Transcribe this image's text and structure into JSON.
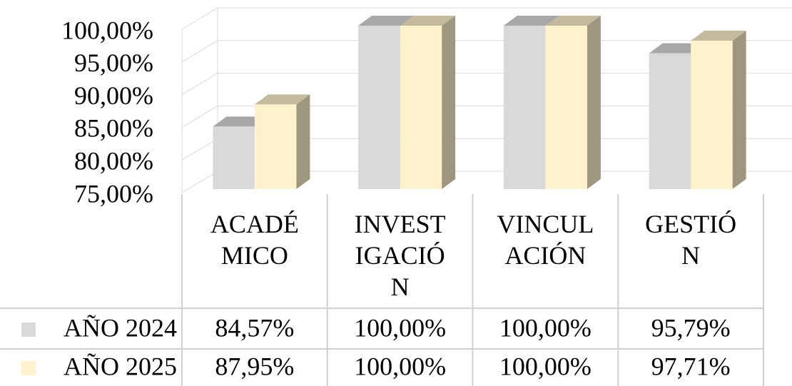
{
  "chart_data": {
    "type": "bar3d",
    "categories": [
      "ACADÉMICO",
      "INVESTIGACIÓN",
      "VINCULACIÓN",
      "GESTIÓN"
    ],
    "series": [
      {
        "name": "AÑO 2024",
        "color": "#d9d9d9",
        "values": [
          84.57,
          100,
          100,
          95.79
        ],
        "value_labels": [
          "84,57%",
          "100,00%",
          "100,00%",
          "95,79%"
        ]
      },
      {
        "name": "AÑO 2025",
        "color": "#fff2cc",
        "values": [
          87.95,
          100,
          100,
          97.71
        ],
        "value_labels": [
          "87,95%",
          "100,00%",
          "100,00%",
          "97,71%"
        ]
      }
    ],
    "ylim": [
      75,
      100
    ],
    "yticks": [
      {
        "value": 75,
        "label": "75,00%"
      },
      {
        "value": 80,
        "label": "80,00%"
      },
      {
        "value": 85,
        "label": "85,00%"
      },
      {
        "value": 90,
        "label": "90,00%"
      },
      {
        "value": 95,
        "label": "95,00%"
      },
      {
        "value": 100,
        "label": "100,00%"
      }
    ],
    "grid": true
  }
}
